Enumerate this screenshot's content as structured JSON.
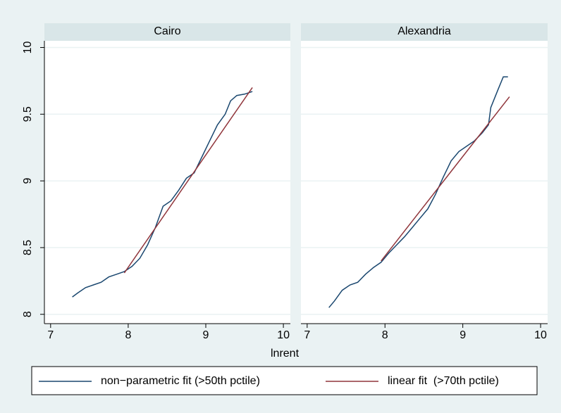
{
  "chart_data": [
    {
      "type": "line",
      "title": "Cairo",
      "xlabel": "lnrent",
      "xlim": [
        6.92,
        10.09
      ],
      "xticks": [
        7,
        8,
        9,
        10
      ],
      "ylim": [
        7.93,
        10.05
      ],
      "yticks": [
        8,
        8.5,
        9,
        9.5,
        10
      ],
      "grid": true,
      "show_yticklabels": true,
      "series": [
        {
          "name": "non−parametric fit (>50th pctile)",
          "color": "#1a476f",
          "x": [
            7.28,
            7.35,
            7.45,
            7.55,
            7.65,
            7.75,
            7.85,
            7.95,
            8.05,
            8.15,
            8.25,
            8.35,
            8.45,
            8.55,
            8.65,
            8.75,
            8.85,
            8.95,
            9.05,
            9.15,
            9.25,
            9.32,
            9.4,
            9.5,
            9.6
          ],
          "values": [
            8.13,
            8.16,
            8.2,
            8.22,
            8.24,
            8.28,
            8.3,
            8.32,
            8.36,
            8.42,
            8.52,
            8.65,
            8.81,
            8.85,
            8.93,
            9.02,
            9.06,
            9.18,
            9.3,
            9.42,
            9.5,
            9.6,
            9.64,
            9.65,
            9.67
          ]
        },
        {
          "name": "linear fit  (>70th pctile)",
          "color": "#90353b",
          "x": [
            7.95,
            9.6
          ],
          "values": [
            8.31,
            9.7
          ]
        }
      ]
    },
    {
      "type": "line",
      "title": "Alexandria",
      "xlim": [
        6.92,
        10.09
      ],
      "xticks": [
        7,
        8,
        9,
        10
      ],
      "ylim": [
        7.93,
        10.05
      ],
      "yticks": [
        8,
        8.5,
        9,
        9.5,
        10
      ],
      "grid": true,
      "show_yticklabels": false,
      "series": [
        {
          "color": "#1a476f",
          "x": [
            7.28,
            7.35,
            7.45,
            7.55,
            7.65,
            7.75,
            7.85,
            7.95,
            8.05,
            8.15,
            8.25,
            8.35,
            8.45,
            8.55,
            8.65,
            8.75,
            8.85,
            8.95,
            9.05,
            9.15,
            9.25,
            9.33,
            9.36,
            9.45,
            9.52,
            9.58
          ],
          "values": [
            8.05,
            8.1,
            8.18,
            8.22,
            8.24,
            8.3,
            8.35,
            8.39,
            8.46,
            8.52,
            8.58,
            8.65,
            8.72,
            8.79,
            8.9,
            9.03,
            9.15,
            9.22,
            9.26,
            9.3,
            9.36,
            9.42,
            9.55,
            9.68,
            9.78,
            9.78
          ]
        },
        {
          "color": "#90353b",
          "x": [
            7.95,
            9.6
          ],
          "values": [
            8.4,
            9.63
          ]
        }
      ]
    }
  ]
}
